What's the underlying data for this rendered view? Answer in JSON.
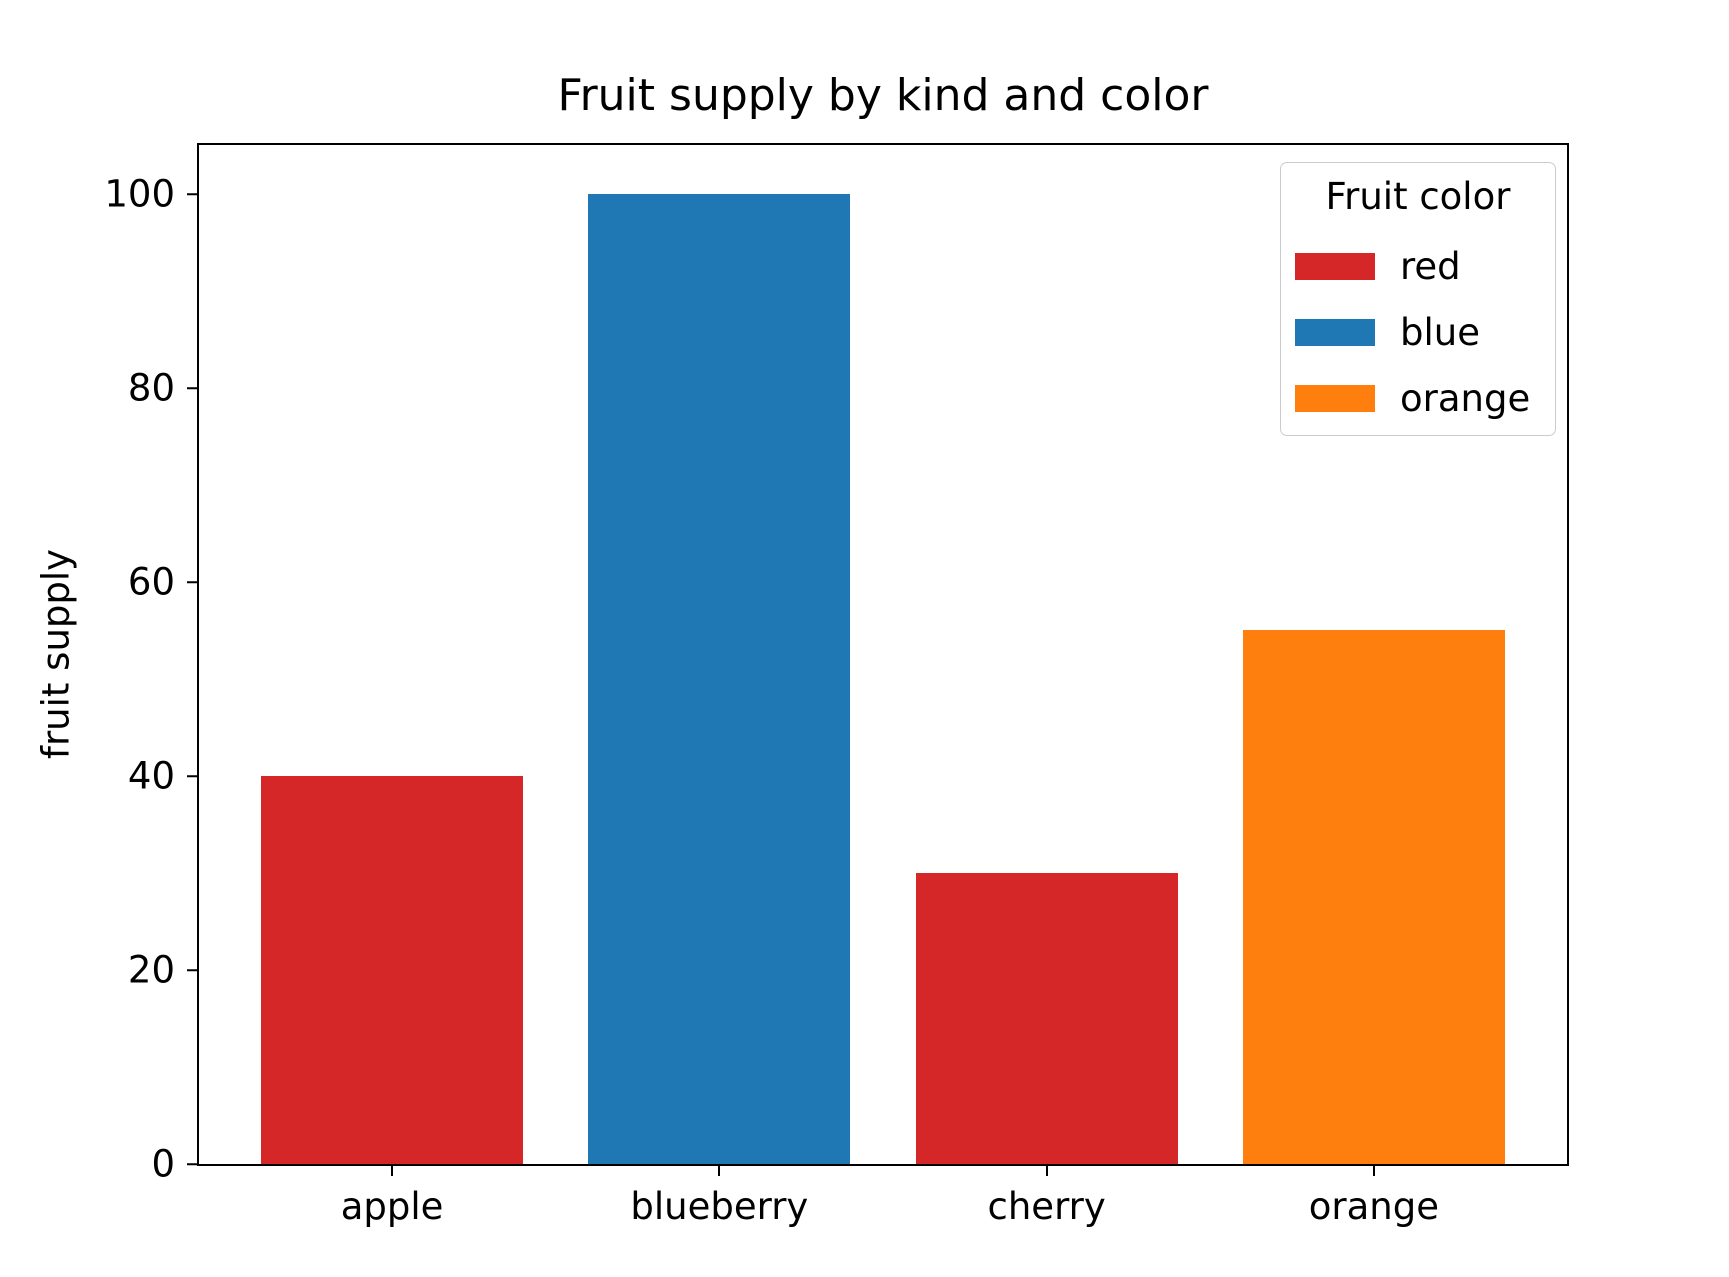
{
  "chart_data": {
    "type": "bar",
    "title": "Fruit supply by kind and color",
    "xlabel": "",
    "ylabel": "fruit supply",
    "categories": [
      "apple",
      "blueberry",
      "cherry",
      "orange"
    ],
    "values": [
      40,
      100,
      30,
      55
    ],
    "bar_colors": [
      "#d62728",
      "#1f77b4",
      "#d62728",
      "#ff7f0e"
    ],
    "bar_width": 0.8,
    "xlim": [
      -0.59,
      3.59
    ],
    "ylim": [
      0,
      105
    ],
    "yticks": [
      0,
      20,
      40,
      60,
      80,
      100
    ],
    "grid": false,
    "legend": {
      "title": "Fruit color",
      "position": "upper right",
      "entries": [
        {
          "label": "red",
          "color": "#d62728"
        },
        {
          "label": "blue",
          "color": "#1f77b4"
        },
        {
          "label": "orange",
          "color": "#ff7f0e"
        }
      ]
    }
  }
}
